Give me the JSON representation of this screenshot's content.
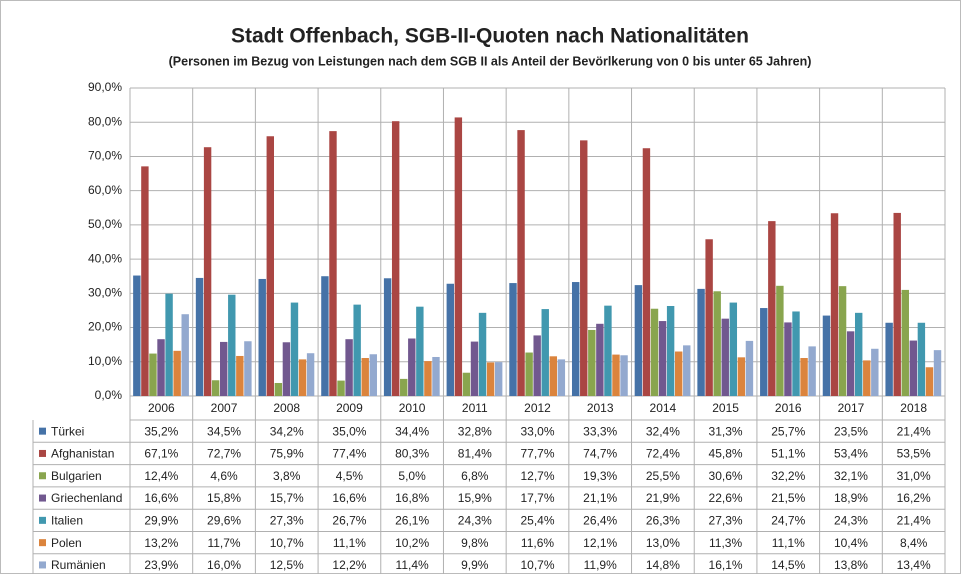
{
  "chart_data": {
    "type": "bar",
    "title": "Stadt Offenbach, SGB-II-Quoten nach Nationalitäten",
    "subtitle": "(Personen im Bezug von Leistungen nach dem SGB II als Anteil der Bevörlkerung von 0 bis unter 65 Jahren)",
    "categories": [
      "2006",
      "2007",
      "2008",
      "2009",
      "2010",
      "2011",
      "2012",
      "2013",
      "2014",
      "2015",
      "2016",
      "2017",
      "2018"
    ],
    "ylim": [
      0,
      90
    ],
    "yticks": [
      {
        "value": 0,
        "label": "0,0%"
      },
      {
        "value": 10,
        "label": "10,0%"
      },
      {
        "value": 20,
        "label": "20,0%"
      },
      {
        "value": 30,
        "label": "30,0%"
      },
      {
        "value": 40,
        "label": "40,0%"
      },
      {
        "value": 50,
        "label": "50,0%"
      },
      {
        "value": 60,
        "label": "60,0%"
      },
      {
        "value": 70,
        "label": "70,0%"
      },
      {
        "value": 80,
        "label": "80,0%"
      },
      {
        "value": 90,
        "label": "90,0%"
      }
    ],
    "grid": true,
    "series": [
      {
        "name": "Türkei",
        "color": "#4572a7",
        "values": [
          35.2,
          34.5,
          34.2,
          35.0,
          34.4,
          32.8,
          33.0,
          33.3,
          32.4,
          31.3,
          25.7,
          23.5,
          21.4
        ],
        "value_labels": [
          "35,2%",
          "34,5%",
          "34,2%",
          "35,0%",
          "34,4%",
          "32,8%",
          "33,0%",
          "33,3%",
          "32,4%",
          "31,3%",
          "25,7%",
          "23,5%",
          "21,4%"
        ]
      },
      {
        "name": "Afghanistan",
        "color": "#aa4643",
        "values": [
          67.1,
          72.7,
          75.9,
          77.4,
          80.3,
          81.4,
          77.7,
          74.7,
          72.4,
          45.8,
          51.1,
          53.4,
          53.5
        ],
        "value_labels": [
          "67,1%",
          "72,7%",
          "75,9%",
          "77,4%",
          "80,3%",
          "81,4%",
          "77,7%",
          "74,7%",
          "72,4%",
          "45,8%",
          "51,1%",
          "53,4%",
          "53,5%"
        ]
      },
      {
        "name": "Bulgarien",
        "color": "#89a54e",
        "values": [
          12.4,
          4.6,
          3.8,
          4.5,
          5.0,
          6.8,
          12.7,
          19.3,
          25.5,
          30.6,
          32.2,
          32.1,
          31.0
        ],
        "value_labels": [
          "12,4%",
          "4,6%",
          "3,8%",
          "4,5%",
          "5,0%",
          "6,8%",
          "12,7%",
          "19,3%",
          "25,5%",
          "30,6%",
          "32,2%",
          "32,1%",
          "31,0%"
        ]
      },
      {
        "name": "Griechenland",
        "color": "#71588f",
        "values": [
          16.6,
          15.8,
          15.7,
          16.6,
          16.8,
          15.9,
          17.7,
          21.1,
          21.9,
          22.6,
          21.5,
          18.9,
          16.2
        ],
        "value_labels": [
          "16,6%",
          "15,8%",
          "15,7%",
          "16,6%",
          "16,8%",
          "15,9%",
          "17,7%",
          "21,1%",
          "21,9%",
          "22,6%",
          "21,5%",
          "18,9%",
          "16,2%"
        ]
      },
      {
        "name": "Italien",
        "color": "#4198af",
        "values": [
          29.9,
          29.6,
          27.3,
          26.7,
          26.1,
          24.3,
          25.4,
          26.4,
          26.3,
          27.3,
          24.7,
          24.3,
          21.4
        ],
        "value_labels": [
          "29,9%",
          "29,6%",
          "27,3%",
          "26,7%",
          "26,1%",
          "24,3%",
          "25,4%",
          "26,4%",
          "26,3%",
          "27,3%",
          "24,7%",
          "24,3%",
          "21,4%"
        ]
      },
      {
        "name": "Polen",
        "color": "#db843d",
        "values": [
          13.2,
          11.7,
          10.7,
          11.1,
          10.2,
          9.8,
          11.6,
          12.1,
          13.0,
          11.3,
          11.1,
          10.4,
          8.4
        ],
        "value_labels": [
          "13,2%",
          "11,7%",
          "10,7%",
          "11,1%",
          "10,2%",
          "9,8%",
          "11,6%",
          "12,1%",
          "13,0%",
          "11,3%",
          "11,1%",
          "10,4%",
          "8,4%"
        ]
      },
      {
        "name": "Rumänien",
        "color": "#93a9cf",
        "values": [
          23.9,
          16.0,
          12.5,
          12.2,
          11.4,
          9.9,
          10.7,
          11.9,
          14.8,
          16.1,
          14.5,
          13.8,
          13.4
        ],
        "value_labels": [
          "23,9%",
          "16,0%",
          "12,5%",
          "12,2%",
          "11,4%",
          "9,9%",
          "10,7%",
          "11,9%",
          "14,8%",
          "16,1%",
          "14,5%",
          "13,8%",
          "13,4%"
        ]
      }
    ]
  }
}
